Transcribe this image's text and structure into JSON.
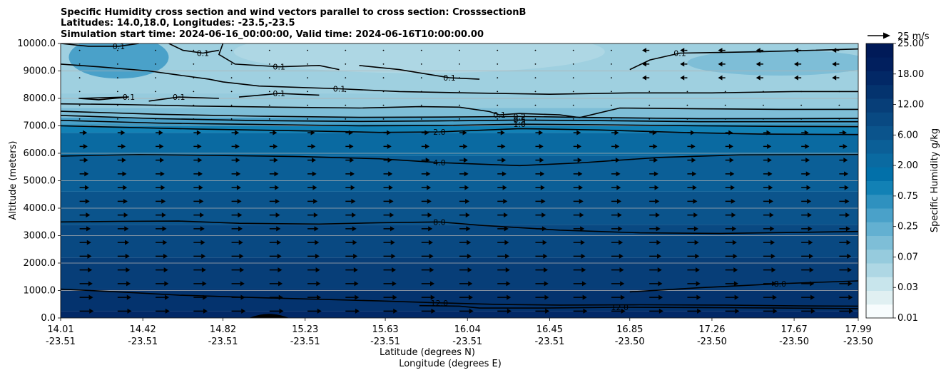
{
  "chart_data": {
    "type": "filled-contour cross section with wind vectors",
    "title_lines": [
      "Specific Humidity cross section and wind vectors parallel to cross section: CrosssectionB",
      "Latitudes: 14.0,18.0, Longitudes: -23.5,-23.5",
      "Simulation start time: 2024-06-16_00:00:00, Valid time: 2024-06-16T10:00:00.00"
    ],
    "ylabel": "Altitude (meters)",
    "xlabel_lat": "Latitude (degrees N)",
    "xlabel_lon": "Longitude (degrees E)",
    "ylim": [
      0,
      10000
    ],
    "y_ticks": [
      "0.0",
      "1000.0",
      "2000.0",
      "3000.0",
      "4000.0",
      "5000.0",
      "6000.0",
      "7000.0",
      "8000.0",
      "9000.0",
      "10000.0"
    ],
    "y_tick_values": [
      0,
      1000,
      2000,
      3000,
      4000,
      5000,
      6000,
      7000,
      8000,
      9000,
      10000
    ],
    "xlim": [
      14.01,
      17.99
    ],
    "x_ticks": [
      {
        "lat": "14.01",
        "lon": "-23.51"
      },
      {
        "lat": "14.42",
        "lon": "-23.51"
      },
      {
        "lat": "14.82",
        "lon": "-23.51"
      },
      {
        "lat": "15.23",
        "lon": "-23.51"
      },
      {
        "lat": "15.63",
        "lon": "-23.51"
      },
      {
        "lat": "16.04",
        "lon": "-23.51"
      },
      {
        "lat": "16.45",
        "lon": "-23.51"
      },
      {
        "lat": "16.85",
        "lon": "-23.50"
      },
      {
        "lat": "17.26",
        "lon": "-23.50"
      },
      {
        "lat": "17.67",
        "lon": "-23.50"
      },
      {
        "lat": "17.99",
        "lon": "-23.50"
      }
    ],
    "colorbar_label": "Specific Humidity g/kg",
    "colorbar_ticks": [
      "0.01",
      "0.03",
      "0.07",
      "0.25",
      "0.75",
      "2.00",
      "6.00",
      "12.00",
      "18.00",
      "25.00"
    ],
    "colorbar_colors": [
      "#f7fcfd",
      "#e0f0f2",
      "#c8e5ec",
      "#aed7e4",
      "#96cbdd",
      "#7ebed7",
      "#63b0d1",
      "#4aa1c9",
      "#2f91bf",
      "#1281b5",
      "#0270a9",
      "#0a6aa1",
      "#0b5f97",
      "#0b548c",
      "#094982",
      "#073e78",
      "#04336e",
      "#022866",
      "#011f5e",
      "#001a58"
    ],
    "quiver_key_label": "25 m/s",
    "grid": "horizontal",
    "contours": [
      {
        "level": "12.0",
        "points": [
          [
            14.01,
            1050
          ],
          [
            14.3,
            950
          ],
          [
            14.6,
            830
          ],
          [
            14.9,
            760
          ],
          [
            15.2,
            700
          ],
          [
            15.6,
            620
          ],
          [
            15.9,
            550
          ],
          [
            16.2,
            490
          ],
          [
            16.5,
            470
          ],
          [
            16.9,
            480
          ],
          [
            17.3,
            470
          ],
          [
            17.7,
            440
          ],
          [
            17.99,
            430
          ]
        ]
      },
      {
        "level": "12.0",
        "points": [
          [
            15.8,
            450
          ],
          [
            16.0,
            430
          ],
          [
            16.1,
            360
          ],
          [
            16.4,
            360
          ],
          [
            16.8,
            390
          ],
          [
            17.2,
            380
          ],
          [
            17.6,
            360
          ],
          [
            17.99,
            340
          ]
        ]
      },
      {
        "level": "8.0",
        "points": [
          [
            16.85,
            950
          ],
          [
            17.2,
            1100
          ],
          [
            17.6,
            1250
          ],
          [
            17.99,
            1350
          ]
        ]
      },
      {
        "level": "8.0",
        "points": [
          [
            14.01,
            3500
          ],
          [
            14.3,
            3520
          ],
          [
            14.6,
            3530
          ],
          [
            14.9,
            3450
          ],
          [
            15.3,
            3420
          ],
          [
            15.6,
            3470
          ],
          [
            15.9,
            3500
          ],
          [
            16.1,
            3380
          ],
          [
            16.5,
            3200
          ],
          [
            16.9,
            3100
          ],
          [
            17.3,
            3080
          ],
          [
            17.7,
            3120
          ],
          [
            17.99,
            3150
          ]
        ]
      },
      {
        "level": "4.0",
        "points": [
          [
            14.01,
            5900
          ],
          [
            14.4,
            5950
          ],
          [
            14.8,
            5920
          ],
          [
            15.2,
            5880
          ],
          [
            15.6,
            5800
          ],
          [
            15.9,
            5660
          ],
          [
            16.3,
            5550
          ],
          [
            16.6,
            5650
          ],
          [
            17.0,
            5850
          ],
          [
            17.4,
            5940
          ],
          [
            17.99,
            5950
          ]
        ]
      },
      {
        "level": "2.0",
        "points": [
          [
            14.01,
            7000
          ],
          [
            14.3,
            6950
          ],
          [
            14.7,
            6880
          ],
          [
            15.2,
            6820
          ],
          [
            15.6,
            6760
          ],
          [
            15.9,
            6780
          ],
          [
            16.3,
            6900
          ],
          [
            16.7,
            6850
          ],
          [
            17.1,
            6760
          ],
          [
            17.5,
            6700
          ],
          [
            17.99,
            6680
          ]
        ]
      },
      {
        "level": "1.0",
        "points": [
          [
            14.01,
            7200
          ],
          [
            14.5,
            7100
          ],
          [
            15.0,
            7050
          ],
          [
            15.5,
            7000
          ],
          [
            15.9,
            7010
          ],
          [
            16.3,
            7060
          ],
          [
            16.7,
            7040
          ],
          [
            17.2,
            7000
          ],
          [
            17.6,
            6980
          ],
          [
            17.99,
            6970
          ]
        ]
      },
      {
        "level": "0.5",
        "points": [
          [
            14.01,
            7380
          ],
          [
            14.5,
            7260
          ],
          [
            15.0,
            7190
          ],
          [
            15.5,
            7160
          ],
          [
            15.9,
            7180
          ],
          [
            16.3,
            7210
          ],
          [
            16.7,
            7190
          ],
          [
            17.2,
            7150
          ],
          [
            17.6,
            7150
          ],
          [
            17.99,
            7150
          ]
        ]
      },
      {
        "level": "0.2",
        "points": [
          [
            14.01,
            7530
          ],
          [
            14.5,
            7420
          ],
          [
            15.0,
            7350
          ],
          [
            15.5,
            7310
          ],
          [
            15.9,
            7320
          ],
          [
            16.3,
            7340
          ],
          [
            16.7,
            7300
          ],
          [
            17.2,
            7260
          ],
          [
            17.6,
            7260
          ],
          [
            17.99,
            7270
          ]
        ]
      },
      {
        "level": "0.1",
        "points": [
          [
            14.01,
            7800
          ],
          [
            14.3,
            7780
          ],
          [
            14.7,
            7720
          ],
          [
            15.1,
            7680
          ],
          [
            15.5,
            7650
          ],
          [
            15.8,
            7700
          ],
          [
            16.0,
            7680
          ],
          [
            16.15,
            7520
          ],
          [
            16.2,
            7400
          ],
          [
            16.3,
            7450
          ],
          [
            16.5,
            7400
          ],
          [
            16.6,
            7300
          ],
          [
            16.8,
            7650
          ],
          [
            17.2,
            7620
          ],
          [
            17.6,
            7600
          ],
          [
            17.99,
            7600
          ]
        ]
      },
      {
        "level": "0.1",
        "points": [
          [
            14.01,
            9250
          ],
          [
            14.2,
            9150
          ],
          [
            14.45,
            9000
          ],
          [
            14.6,
            8850
          ],
          [
            14.75,
            8700
          ],
          [
            14.82,
            8600
          ],
          [
            15.0,
            8450
          ],
          [
            15.4,
            8350
          ],
          [
            15.7,
            8250
          ],
          [
            16.04,
            8200
          ],
          [
            16.45,
            8150
          ],
          [
            16.85,
            8200
          ],
          [
            17.26,
            8200
          ],
          [
            17.67,
            8250
          ],
          [
            17.99,
            8250
          ]
        ]
      },
      {
        "level": "0.1",
        "points": [
          [
            14.82,
            10000
          ],
          [
            14.8,
            9600
          ],
          [
            14.88,
            9250
          ],
          [
            15.1,
            9150
          ],
          [
            15.3,
            9200
          ],
          [
            15.4,
            9050
          ]
        ]
      },
      {
        "level": "0.1",
        "points": [
          [
            14.01,
            10000
          ],
          [
            14.15,
            9900
          ],
          [
            14.3,
            9900
          ],
          [
            14.4,
            10000
          ]
        ]
      },
      {
        "level": "0.1",
        "points": [
          [
            14.55,
            10000
          ],
          [
            14.62,
            9750
          ],
          [
            14.72,
            9650
          ],
          [
            14.8,
            9750
          ]
        ]
      },
      {
        "level": "0.1",
        "points": [
          [
            15.5,
            9200
          ],
          [
            15.7,
            9050
          ],
          [
            15.95,
            8750
          ],
          [
            16.1,
            8700
          ]
        ]
      },
      {
        "level": "0.1",
        "points": [
          [
            16.85,
            9050
          ],
          [
            16.95,
            9400
          ],
          [
            17.1,
            9650
          ],
          [
            17.5,
            9700
          ],
          [
            17.99,
            9800
          ]
        ]
      },
      {
        "level": "0.1",
        "points": [
          [
            14.1,
            8000
          ],
          [
            14.2,
            7950
          ],
          [
            14.35,
            8050
          ],
          [
            14.1,
            8000
          ]
        ]
      },
      {
        "level": "0.1",
        "points": [
          [
            14.45,
            7900
          ],
          [
            14.6,
            8050
          ],
          [
            14.8,
            8000
          ]
        ]
      },
      {
        "level": "0.1",
        "points": [
          [
            14.9,
            8050
          ],
          [
            15.1,
            8180
          ],
          [
            15.3,
            8120
          ]
        ]
      }
    ]
  }
}
